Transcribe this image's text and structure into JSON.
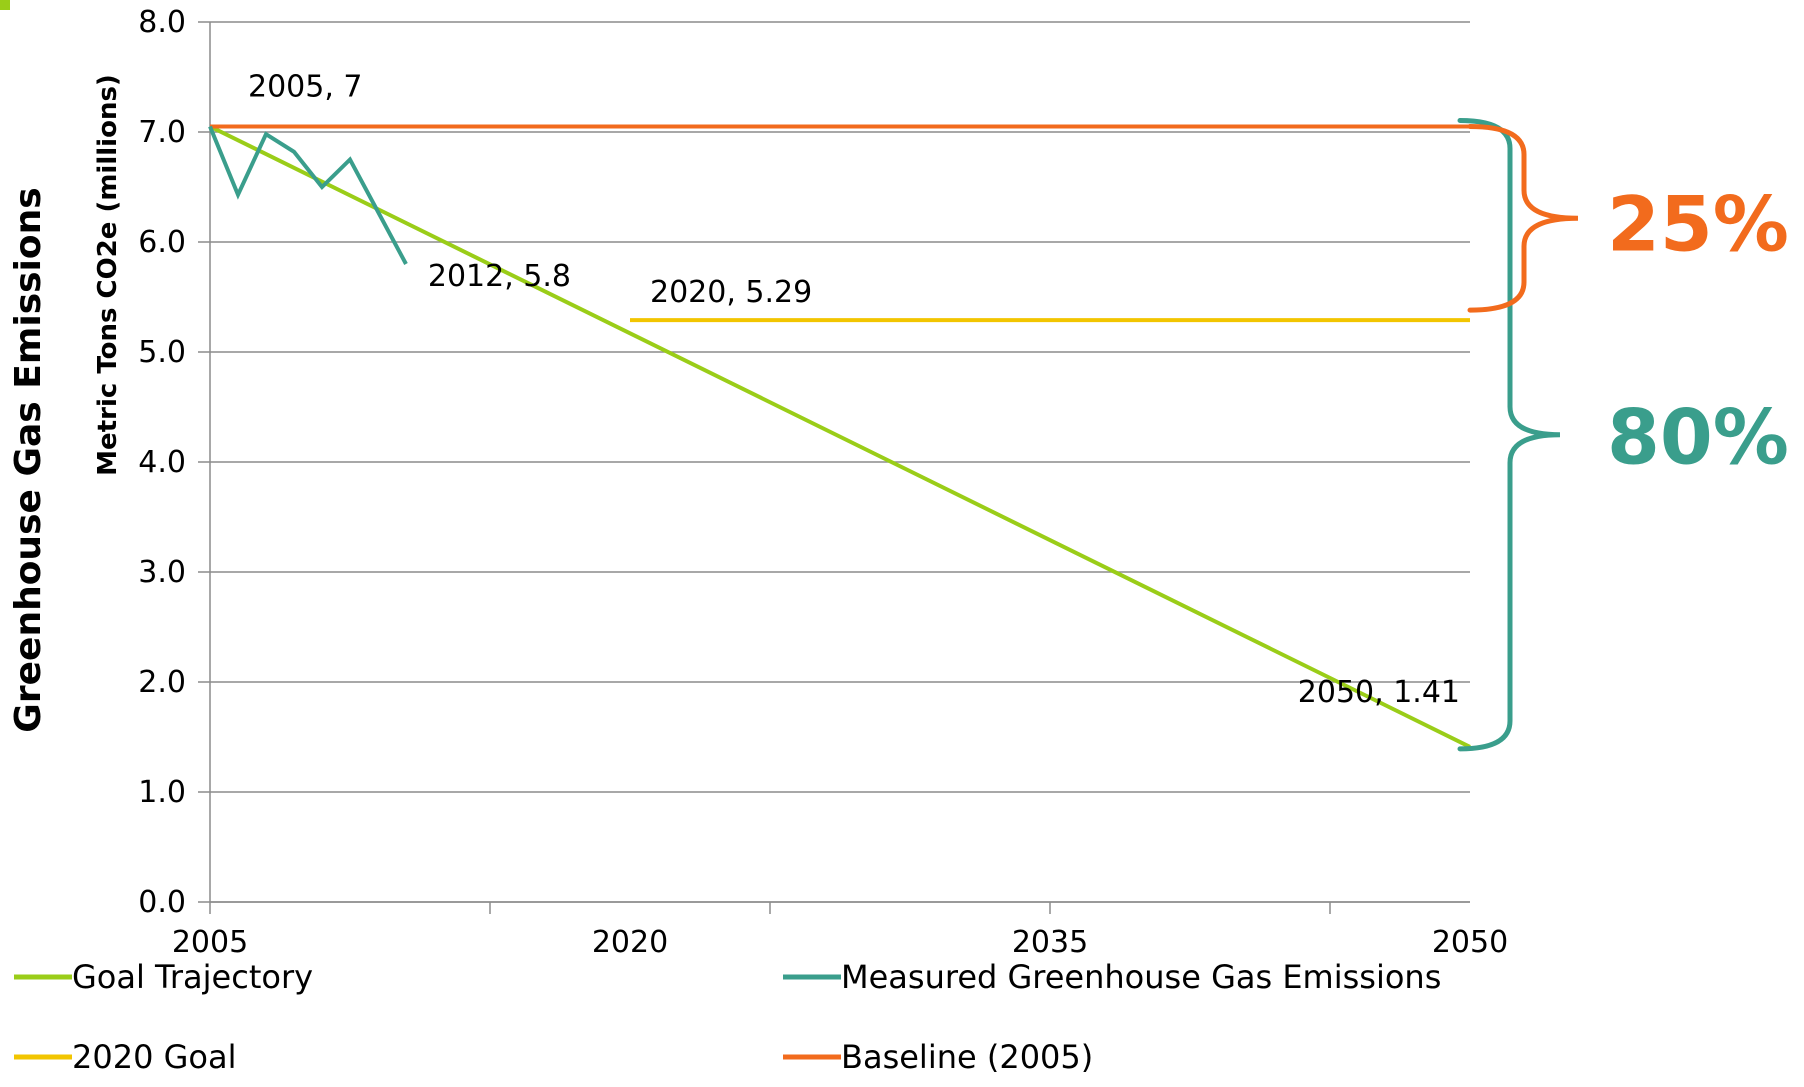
{
  "chart_data": {
    "type": "line",
    "ylabel": "Greenhouse Gas Emissions",
    "ylabel_sub": "Metric Tons CO2e (millions)",
    "ylim": [
      0,
      8
    ],
    "y_ticks": [
      "0.0",
      "1.0",
      "2.0",
      "3.0",
      "4.0",
      "5.0",
      "6.0",
      "7.0",
      "8.0"
    ],
    "xlim": [
      2005,
      2050
    ],
    "x_ticks": [
      "2005",
      "2020",
      "2035",
      "2050"
    ],
    "grid": true,
    "legend_position": "bottom",
    "series": [
      {
        "name": "Goal Trajectory",
        "color": "#9ACD18",
        "points": [
          [
            2005,
            7.05
          ],
          [
            2050,
            1.41
          ]
        ]
      },
      {
        "name": "Measured Greenhouse Gas Emissions",
        "color": "#3A9E8C",
        "points": [
          [
            2005,
            7.05
          ],
          [
            2006,
            6.43
          ],
          [
            2007,
            6.98
          ],
          [
            2008,
            6.82
          ],
          [
            2009,
            6.5
          ],
          [
            2010,
            6.75
          ],
          [
            2012,
            5.8
          ]
        ]
      },
      {
        "name": "2020 Goal",
        "color": "#F2C500",
        "points": [
          [
            2020,
            5.29
          ],
          [
            2050,
            5.29
          ]
        ]
      },
      {
        "name": "Baseline (2005)",
        "color": "#F26B1D",
        "points": [
          [
            2005,
            7.05
          ],
          [
            2050,
            7.05
          ]
        ]
      }
    ],
    "data_labels": [
      {
        "text": "2005, 7",
        "x": 2005,
        "y": 7.05
      },
      {
        "text": "2012, 5.8",
        "x": 2012,
        "y": 5.8
      },
      {
        "text": "2020, 5.29",
        "x": 2020,
        "y": 5.29
      },
      {
        "text": "2050, 1.41",
        "x": 2050,
        "y": 1.41
      }
    ],
    "annotations": [
      {
        "text": "25%",
        "color": "#F26B1D",
        "from_y": 7.05,
        "to_y": 5.29
      },
      {
        "text": "80%",
        "color": "#3A9E8C",
        "from_y": 7.05,
        "to_y": 1.41
      }
    ]
  }
}
